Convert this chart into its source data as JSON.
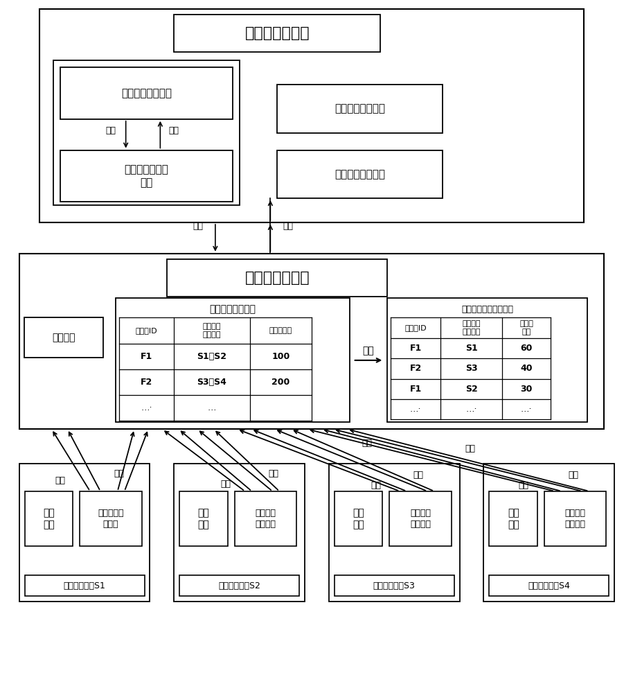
{
  "bg_color": "#ffffff",
  "fig_width": 9.01,
  "fig_height": 10.0,
  "client_title": "许可控制客户端",
  "server_title": "许可控制服务端",
  "import_text": "导入许可文件界面",
  "validity_text": "许可合法性检查\n模块",
  "content_text": "许可内容展现界面",
  "summary_text": "许可消耗汇总界面",
  "register_text": "注册模块",
  "auth_ctrl_text": "许可授权控制模块",
  "realtime_text": "许可授权实时消耗情况",
  "check_label": "检查",
  "return_label": "返回",
  "request_label": "请求",
  "response_label": "回应",
  "update_label": "更新",
  "auth_table_headers": [
    "许可项ID",
    "许可对象\n系统编码",
    "许可共享值"
  ],
  "auth_table_rows": [
    [
      "F1",
      "S1、S2",
      "100"
    ],
    [
      "F2",
      "S3、S4",
      "200"
    ],
    [
      "…·",
      "…",
      ""
    ]
  ],
  "rt_table_headers": [
    "许可项ID",
    "许可对象\n系统编码",
    "当前消\n耗值"
  ],
  "rt_table_rows": [
    [
      "F1",
      "S1",
      "60"
    ],
    [
      "F2",
      "S3",
      "40"
    ],
    [
      "F1",
      "S2",
      "30"
    ],
    [
      "…·",
      "…·",
      "…·"
    ]
  ],
  "systems": [
    {
      "label": "许可对象系统S1",
      "biz_text": "业务\n模块",
      "agent_text": "许可申请代\n理模块",
      "reg_label": "注册",
      "auth_label": "鉴权"
    },
    {
      "label": "许可对象系统S2",
      "biz_text": "业务\n模块",
      "agent_text": "许可申请\n代理模块",
      "reg_label": "注册",
      "auth_label": "鉴权"
    },
    {
      "label": "许可对象系统S3",
      "biz_text": "业务\n模块",
      "agent_text": "许可申请\n代理模块",
      "reg_label": "注册",
      "auth_label": "鉴权"
    },
    {
      "label": "许可对象系统S4",
      "biz_text": "业务\n模块",
      "agent_text": "许可申请\n代理模块",
      "reg_label": "注册",
      "auth_label": "鉴权"
    }
  ]
}
